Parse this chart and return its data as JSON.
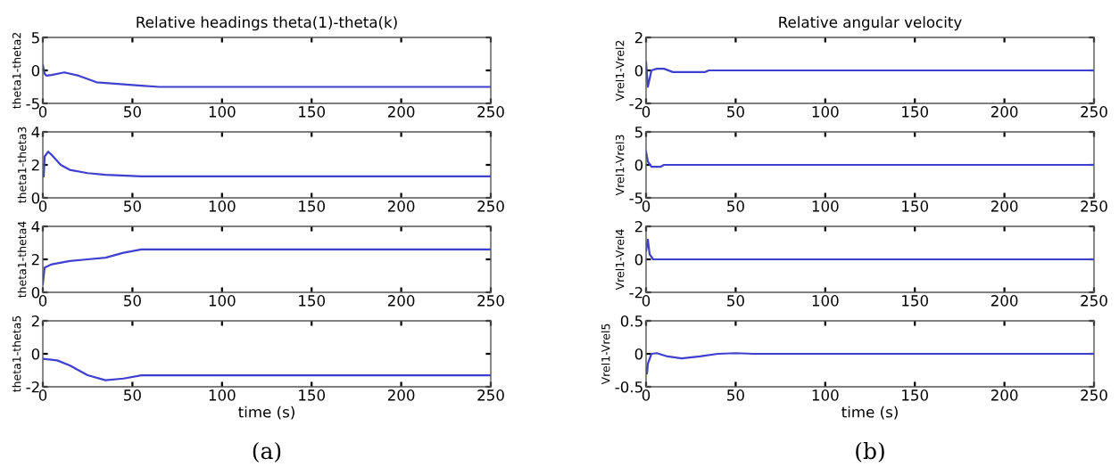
{
  "chart_data": [
    {
      "type": "line",
      "title": "Relative headings theta(1)-theta(k)",
      "ylabel": "theta1-theta2",
      "x": [
        0,
        1,
        2,
        5,
        12,
        20,
        30,
        40,
        55,
        65,
        250
      ],
      "series": [
        {
          "color": "#3f3fd0",
          "values": [
            0.8,
            -0.5,
            -0.8,
            -0.7,
            -0.3,
            -0.8,
            -1.8,
            -2.0,
            -2.3,
            -2.5,
            -2.5
          ]
        }
      ],
      "xlim": [
        0,
        250
      ],
      "xticks": [
        0,
        50,
        100,
        150,
        200,
        250
      ],
      "ylim": [
        -5,
        5
      ],
      "yticks": [
        -5,
        0,
        5
      ],
      "grid": false,
      "legend": false
    },
    {
      "type": "line",
      "ylabel": "theta1-theta3",
      "x": [
        0,
        0.5,
        1,
        3,
        5,
        10,
        15,
        25,
        35,
        55,
        250
      ],
      "series": [
        {
          "color": "#3f3fd0",
          "values": [
            1.5,
            1.3,
            2.5,
            2.8,
            2.6,
            2.0,
            1.7,
            1.5,
            1.4,
            1.3,
            1.3
          ]
        }
      ],
      "xlim": [
        0,
        250
      ],
      "xticks": [
        0,
        50,
        100,
        150,
        200,
        250
      ],
      "ylim": [
        0,
        4
      ],
      "yticks": [
        0,
        2,
        4
      ],
      "grid": false,
      "legend": false
    },
    {
      "type": "line",
      "ylabel": "theta1-theta4",
      "x": [
        0,
        1,
        5,
        15,
        25,
        35,
        45,
        55,
        65,
        90,
        250
      ],
      "series": [
        {
          "color": "#3f3fd0",
          "values": [
            0.5,
            1.5,
            1.7,
            1.9,
            2.0,
            2.1,
            2.4,
            2.6,
            2.6,
            2.6,
            2.6
          ]
        }
      ],
      "xlim": [
        0,
        250
      ],
      "xticks": [
        0,
        50,
        100,
        150,
        200,
        250
      ],
      "ylim": [
        0,
        4
      ],
      "yticks": [
        0,
        2,
        4
      ],
      "grid": false,
      "legend": false
    },
    {
      "type": "line",
      "ylabel": "theta1-theta5",
      "xlabel": "time (s)",
      "annotations": [
        "(a)"
      ],
      "x": [
        0,
        8,
        15,
        25,
        35,
        45,
        55,
        250
      ],
      "series": [
        {
          "color": "#3f3fd0",
          "values": [
            -0.3,
            -0.4,
            -0.7,
            -1.3,
            -1.6,
            -1.5,
            -1.3,
            -1.3
          ]
        }
      ],
      "xlim": [
        0,
        250
      ],
      "xticks": [
        0,
        50,
        100,
        150,
        200,
        250
      ],
      "ylim": [
        -2,
        2
      ],
      "yticks": [
        -2,
        0,
        2
      ],
      "grid": false,
      "legend": false
    },
    {
      "type": "line",
      "title": "Relative angular velocity",
      "ylabel": "Vrel1-Vrel2",
      "x": [
        0,
        1,
        2,
        3,
        6,
        10,
        15,
        33,
        35,
        250
      ],
      "series": [
        {
          "color": "#3f3fd0",
          "values": [
            0.5,
            -1.0,
            -0.5,
            0,
            0.1,
            0.1,
            -0.1,
            -0.1,
            0,
            0
          ]
        }
      ],
      "xlim": [
        0,
        250
      ],
      "xticks": [
        0,
        50,
        100,
        150,
        200,
        250
      ],
      "ylim": [
        -2,
        2
      ],
      "yticks": [
        -2,
        0,
        2
      ],
      "grid": false,
      "legend": false
    },
    {
      "type": "line",
      "ylabel": "Vrel1-Vrel3",
      "x": [
        0,
        1,
        3,
        8,
        10,
        250
      ],
      "series": [
        {
          "color": "#3f3fd0",
          "values": [
            2,
            0.5,
            -0.3,
            -0.3,
            0,
            0
          ]
        }
      ],
      "xlim": [
        0,
        250
      ],
      "xticks": [
        0,
        50,
        100,
        150,
        200,
        250
      ],
      "ylim": [
        -5,
        5
      ],
      "yticks": [
        -5,
        0,
        5
      ],
      "grid": false,
      "legend": false
    },
    {
      "type": "line",
      "ylabel": "Vrel1-Vrel4",
      "x": [
        0,
        1,
        2,
        4,
        250
      ],
      "series": [
        {
          "color": "#3f3fd0",
          "values": [
            0.5,
            1.2,
            0.3,
            0,
            0
          ]
        }
      ],
      "xlim": [
        0,
        250
      ],
      "xticks": [
        0,
        50,
        100,
        150,
        200,
        250
      ],
      "ylim": [
        -2,
        2
      ],
      "yticks": [
        -2,
        0,
        2
      ],
      "grid": false,
      "legend": false
    },
    {
      "type": "line",
      "ylabel": "Vrel1-Vrel5",
      "xlabel": "time (s)",
      "annotations": [
        "(b)"
      ],
      "x": [
        0,
        0.5,
        1,
        3,
        6,
        12,
        20,
        30,
        40,
        50,
        60,
        250
      ],
      "series": [
        {
          "color": "#3f3fd0",
          "values": [
            -0.2,
            -0.3,
            -0.15,
            0,
            0.01,
            -0.04,
            -0.07,
            -0.04,
            0.0,
            0.01,
            0.0,
            0
          ]
        }
      ],
      "xlim": [
        0,
        250
      ],
      "xticks": [
        0,
        50,
        100,
        150,
        200,
        250
      ],
      "ylim": [
        -0.5,
        0.5
      ],
      "yticks": [
        -0.5,
        0,
        0.5
      ],
      "grid": false,
      "legend": false
    }
  ]
}
